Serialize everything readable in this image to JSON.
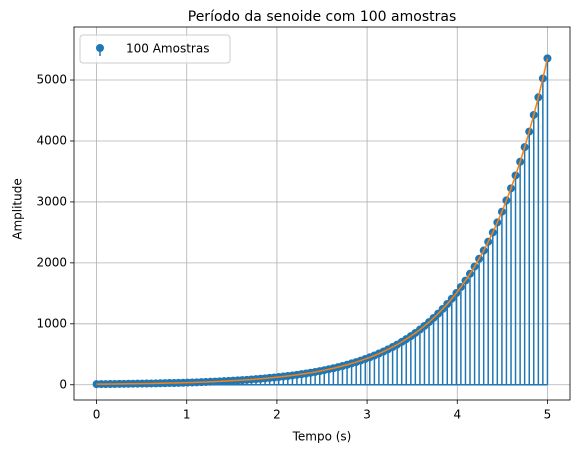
{
  "chart_data": {
    "type": "stem",
    "title": "Período da senoide com 100 amostras",
    "xlabel": "Tempo (s)",
    "ylabel": "Amplitude",
    "x": [
      0,
      0.051,
      0.101,
      0.152,
      0.202,
      0.253,
      0.303,
      0.354,
      0.404,
      0.455,
      0.505,
      0.556,
      0.606,
      0.657,
      0.707,
      0.758,
      0.808,
      0.859,
      0.909,
      0.96,
      1.01,
      1.061,
      1.111,
      1.162,
      1.212,
      1.263,
      1.313,
      1.364,
      1.414,
      1.465,
      1.515,
      1.566,
      1.616,
      1.667,
      1.717,
      1.768,
      1.818,
      1.869,
      1.919,
      1.97,
      2.02,
      2.071,
      2.121,
      2.172,
      2.222,
      2.273,
      2.323,
      2.374,
      2.424,
      2.475,
      2.525,
      2.576,
      2.626,
      2.677,
      2.727,
      2.778,
      2.828,
      2.879,
      2.929,
      2.98,
      3.03,
      3.081,
      3.131,
      3.182,
      3.232,
      3.283,
      3.333,
      3.384,
      3.434,
      3.485,
      3.535,
      3.586,
      3.636,
      3.687,
      3.737,
      3.788,
      3.838,
      3.889,
      3.939,
      3.99,
      4.04,
      4.091,
      4.141,
      4.192,
      4.242,
      4.293,
      4.343,
      4.394,
      4.444,
      4.495,
      4.545,
      4.596,
      4.646,
      4.697,
      4.747,
      4.798,
      4.848,
      4.899,
      4.949,
      5
    ],
    "series": [
      {
        "name": "100 Amostras",
        "color": "#1f77b4",
        "line_color": "#ff7f0e",
        "values": [
          10,
          11,
          11,
          12,
          13,
          14,
          15,
          16,
          17,
          18,
          19,
          20,
          21,
          23,
          24,
          26,
          28,
          29,
          31,
          33,
          36,
          38,
          40,
          43,
          46,
          49,
          52,
          55,
          59,
          63,
          67,
          72,
          76,
          81,
          87,
          92,
          98,
          105,
          112,
          119,
          127,
          135,
          144,
          153,
          163,
          174,
          185,
          197,
          210,
          224,
          239,
          255,
          271,
          289,
          308,
          328,
          350,
          372,
          397,
          423,
          451,
          480,
          512,
          545,
          581,
          619,
          659,
          703,
          749,
          798,
          850,
          906,
          965,
          1028,
          1096,
          1167,
          1244,
          1325,
          1412,
          1505,
          1604,
          1709,
          1821,
          1940,
          2067,
          2202,
          2347,
          2500,
          2664,
          2839,
          3025,
          3223,
          3434,
          3659,
          3899,
          4154,
          4427,
          4717,
          5026,
          5355
        ]
      }
    ],
    "xlim": [
      -0.25,
      5.25
    ],
    "ylim": [
      -250,
      5870
    ],
    "xticks": [
      0,
      1,
      2,
      3,
      4,
      5
    ],
    "yticks": [
      0,
      1000,
      2000,
      3000,
      4000,
      5000
    ],
    "grid": true,
    "legend": "upper left"
  }
}
